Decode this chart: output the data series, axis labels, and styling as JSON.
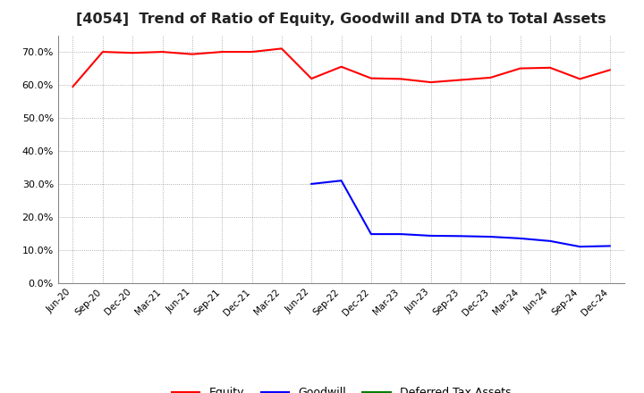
{
  "title": "[4054]  Trend of Ratio of Equity, Goodwill and DTA to Total Assets",
  "x_labels": [
    "Jun-20",
    "Sep-20",
    "Dec-20",
    "Mar-21",
    "Jun-21",
    "Sep-21",
    "Dec-21",
    "Mar-22",
    "Jun-22",
    "Sep-22",
    "Dec-22",
    "Mar-23",
    "Jun-23",
    "Sep-23",
    "Dec-23",
    "Mar-24",
    "Jun-24",
    "Sep-24",
    "Dec-24"
  ],
  "equity": [
    0.595,
    0.7,
    0.697,
    0.7,
    0.693,
    0.7,
    0.7,
    0.71,
    0.619,
    0.655,
    0.62,
    0.618,
    0.608,
    0.615,
    0.622,
    0.65,
    0.652,
    0.618,
    0.645
  ],
  "goodwill": [
    null,
    null,
    null,
    null,
    null,
    null,
    null,
    null,
    0.3,
    0.31,
    0.148,
    0.148,
    0.143,
    0.142,
    0.14,
    0.135,
    0.127,
    0.11,
    0.112
  ],
  "dta": [
    null,
    null,
    null,
    null,
    null,
    null,
    null,
    null,
    null,
    null,
    null,
    null,
    null,
    null,
    null,
    null,
    null,
    null,
    null
  ],
  "equity_color": "#ff0000",
  "goodwill_color": "#0000ff",
  "dta_color": "#008000",
  "ylim_min": 0.0,
  "ylim_max": 0.75,
  "yticks": [
    0.0,
    0.1,
    0.2,
    0.3,
    0.4,
    0.5,
    0.6,
    0.7
  ],
  "background_color": "#ffffff",
  "grid_color": "#999999",
  "title_fontsize": 11.5,
  "legend_fontsize": 9
}
